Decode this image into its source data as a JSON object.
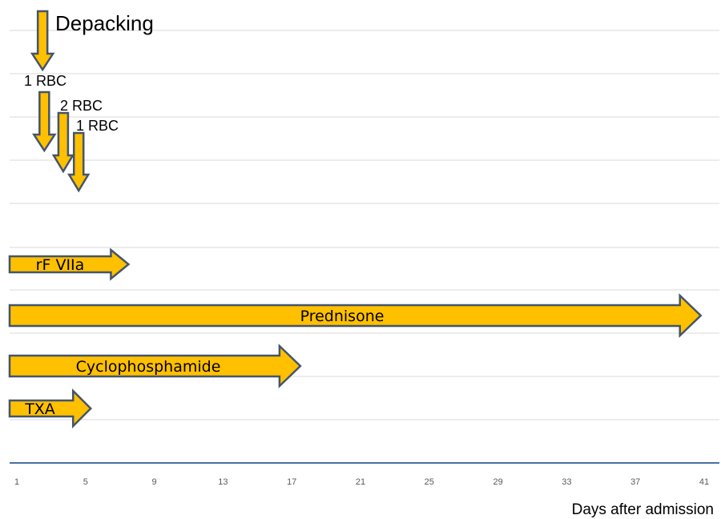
{
  "chart_data": {
    "type": "timeline",
    "xlabel": "Days after admission",
    "ticks": [
      1,
      5,
      9,
      13,
      17,
      21,
      25,
      29,
      33,
      37,
      41
    ],
    "xlim": [
      1,
      42
    ],
    "grid": "horizontal",
    "fill_color": "#ffc000",
    "outline_color": "#44546a",
    "treatments": [
      {
        "label": "rF VIIa",
        "start": 1,
        "end": 7.5
      },
      {
        "label": "Prednisone",
        "start": 1,
        "end": 40.8
      },
      {
        "label": "Cyclophosphamide",
        "start": 1,
        "end": 17.5
      },
      {
        "label": "TXA",
        "start": 1,
        "end": 5.3
      }
    ],
    "events": [
      {
        "label": "Depacking",
        "day": 2.5
      },
      {
        "label": "1 RBC",
        "day": 2.6
      },
      {
        "label": "2 RBC",
        "day": 3.7
      },
      {
        "label": "1 RBC",
        "day": 4.6
      }
    ]
  }
}
